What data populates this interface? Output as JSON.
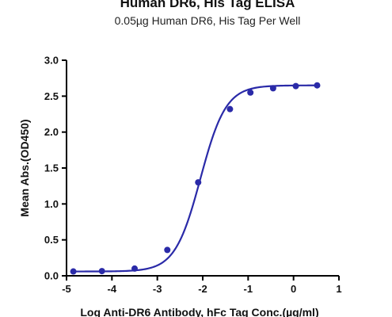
{
  "chart_data": {
    "type": "line",
    "title": "Human DR6, His Tag ELISA",
    "subtitle": "0.05µg Human DR6, His Tag Per Well",
    "xlabel": "Log Anti-DR6 Antibody, hFc Tag Conc.(µg/ml)",
    "ylabel": "Mean Abs.(OD450)",
    "xlim": [
      -5,
      1
    ],
    "ylim": [
      0,
      3
    ],
    "x_ticks": [
      "-5",
      "-4",
      "-3",
      "-2",
      "-1",
      "0",
      "1"
    ],
    "y_ticks": [
      "0.0",
      "0.5",
      "1.0",
      "1.5",
      "2.0",
      "2.5",
      "3.0"
    ],
    "grid": false,
    "series": [
      {
        "color": "#2a2aa8",
        "points": [
          {
            "x": -4.85,
            "y": 0.06
          },
          {
            "x": -4.22,
            "y": 0.065
          },
          {
            "x": -3.5,
            "y": 0.1
          },
          {
            "x": -2.78,
            "y": 0.36
          },
          {
            "x": -2.1,
            "y": 1.3
          },
          {
            "x": -1.4,
            "y": 2.32
          },
          {
            "x": -0.95,
            "y": 2.55
          },
          {
            "x": -0.45,
            "y": 2.61
          },
          {
            "x": 0.05,
            "y": 2.64
          },
          {
            "x": 0.52,
            "y": 2.65
          }
        ],
        "fit": {
          "bottom": 0.06,
          "top": 2.65,
          "log_ec50": -2.05,
          "hill_slope": 1.55
        }
      }
    ]
  }
}
